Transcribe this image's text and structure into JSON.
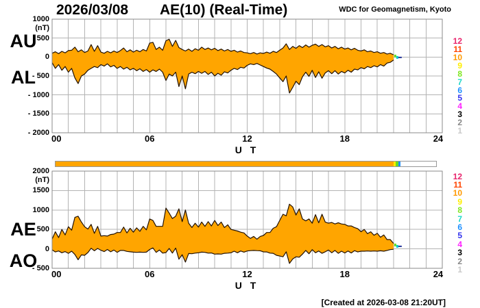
{
  "header": {
    "date": "2026/03/08",
    "title": "AE(10) (Real-Time)",
    "source": "WDC for Geomagnetism, Kyoto"
  },
  "footer": {
    "created_note": "[Created at 2026-03-08 21:20UT]"
  },
  "palette": {
    "area_fill": "#FFA500",
    "area_outline": "#201000",
    "grid": "#b3b3b3",
    "frame": "#8a8a8a",
    "text": "#000000"
  },
  "station_count_legend": {
    "values": [
      "12",
      "11",
      "10",
      "9",
      "8",
      "7",
      "6",
      "5",
      "4",
      "3",
      "2",
      "1"
    ],
    "colors": [
      "#E8246C",
      "#FF4500",
      "#FF9900",
      "#FFEE00",
      "#7FE622",
      "#1FD8C8",
      "#1E90FF",
      "#3333EE",
      "#FF22FF",
      "#000000",
      "#888888",
      "#C9C9C9"
    ]
  },
  "availability_bar": {
    "hours_span": [
      0,
      24
    ],
    "no_data_color": "#ffffff",
    "segments": [
      {
        "stations": 10,
        "from_hour": 0,
        "to_hour": 21.33,
        "color": "#FFA500"
      },
      {
        "stations": 9,
        "from_hour": 21.33,
        "to_hour": 21.47,
        "color": "#FFEE00"
      },
      {
        "stations": 8,
        "from_hour": 21.47,
        "to_hour": 21.62,
        "color": "#66DD22"
      },
      {
        "stations": 7,
        "from_hour": 21.62,
        "to_hour": 21.76,
        "color": "#1E90FF"
      }
    ]
  },
  "chart_data": [
    {
      "type": "area",
      "panel": "upper",
      "series_labels": [
        "AU",
        "AL"
      ],
      "unit_label": "(nT)",
      "ylim": [
        -2000,
        1000
      ],
      "ytick_values": [
        1000,
        500,
        0,
        -500,
        -1000,
        -1500,
        -2000
      ],
      "ytick_labels": [
        "1000",
        "500",
        "0",
        "- 500",
        "- 1000",
        "- 1500",
        "- 2000"
      ],
      "xlim": [
        0,
        24
      ],
      "xtick_values": [
        0,
        6,
        12,
        18,
        24
      ],
      "xtick_labels": [
        "00",
        "06",
        "12",
        "18",
        "24"
      ],
      "xlabel": "U T",
      "grid": "vertical every 1 h, horizontal every 500 nT",
      "x_start_hour": 0,
      "x_step_hours": 0.2,
      "data_end_hour": 21.0,
      "tail_mark_colors": [
        "#66DD22",
        "#00CCCC",
        "#223399"
      ],
      "AU_nT": [
        100,
        140,
        90,
        150,
        110,
        170,
        180,
        260,
        140,
        190,
        120,
        160,
        330,
        150,
        300,
        130,
        100,
        150,
        110,
        160,
        120,
        170,
        240,
        140,
        190,
        130,
        180,
        140,
        200,
        160,
        370,
        390,
        200,
        260,
        180,
        430,
        470,
        280,
        440,
        250,
        200,
        160,
        210,
        150,
        220,
        180,
        260,
        200,
        240,
        190,
        230,
        170,
        210,
        160,
        200,
        150,
        180,
        130,
        160,
        120,
        110,
        90,
        120,
        80,
        110,
        95,
        130,
        100,
        150,
        120,
        180,
        240,
        350,
        200,
        280,
        230,
        300,
        250,
        320,
        260,
        310,
        340,
        280,
        330,
        270,
        300,
        240,
        280,
        220,
        260,
        210,
        240,
        190,
        230,
        180,
        160,
        190,
        140,
        160,
        120,
        140,
        100,
        120,
        80,
        100,
        60
      ],
      "AL_nT": [
        -150,
        -300,
        -200,
        -350,
        -250,
        -400,
        -300,
        -550,
        -700,
        -500,
        -450,
        -350,
        -300,
        -250,
        -280,
        -200,
        -240,
        -180,
        -260,
        -220,
        -300,
        -250,
        -320,
        -270,
        -340,
        -300,
        -360,
        -310,
        -380,
        -330,
        -400,
        -340,
        -380,
        -320,
        -400,
        -620,
        -450,
        -500,
        -400,
        -780,
        -500,
        -840,
        -450,
        -400,
        -440,
        -380,
        -430,
        -380,
        -460,
        -400,
        -500,
        -430,
        -480,
        -390,
        -420,
        -350,
        -300,
        -330,
        -270,
        -290,
        -220,
        -180,
        -200,
        -170,
        -210,
        -250,
        -290,
        -320,
        -380,
        -450,
        -550,
        -650,
        -500,
        -950,
        -800,
        -640,
        -730,
        -520,
        -400,
        -510,
        -350,
        -540,
        -390,
        -560,
        -420,
        -360,
        -440,
        -360,
        -450,
        -380,
        -420,
        -350,
        -400,
        -320,
        -340,
        -280,
        -310,
        -250,
        -280,
        -230,
        -260,
        -200,
        -240,
        -160,
        -140,
        -80
      ]
    },
    {
      "type": "area",
      "panel": "lower",
      "series_labels": [
        "AE",
        "AO"
      ],
      "unit_label": "(nT)",
      "ylim": [
        -500,
        2000
      ],
      "ytick_values": [
        2000,
        1500,
        1000,
        500,
        0,
        -500
      ],
      "ytick_labels": [
        "2000",
        "1500",
        "1000",
        "500",
        "0",
        "- 500"
      ],
      "xlim": [
        0,
        24
      ],
      "xtick_values": [
        0,
        6,
        12,
        18,
        24
      ],
      "xtick_labels": [
        "00",
        "06",
        "12",
        "18",
        "24"
      ],
      "xlabel": "U T",
      "grid": "vertical every 1 h, horizontal every 500 nT",
      "x_start_hour": 0,
      "x_step_hours": 0.2,
      "data_end_hour": 21.0,
      "tail_mark_colors": [
        "#66DD22",
        "#00CCCC",
        "#223399"
      ],
      "derivation": "AE = AU - AL; AO = (AU + AL) / 2, computed from the upper-panel series"
    }
  ]
}
